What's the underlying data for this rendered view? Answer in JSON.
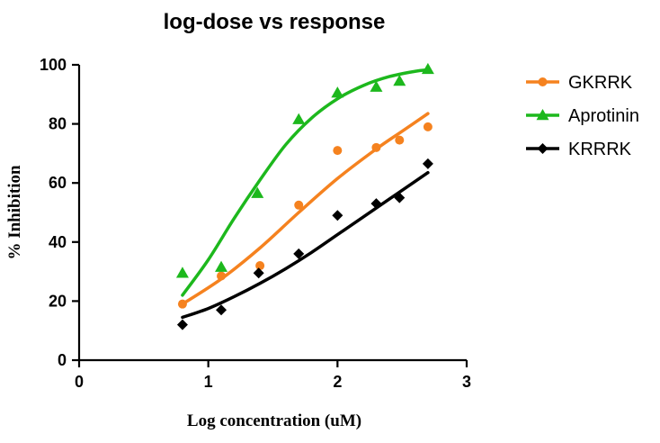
{
  "chart_data": {
    "type": "scatter",
    "title": "log-dose vs response",
    "xlabel": "Log concentration (uM)",
    "ylabel": "% Inhibition",
    "xlim": [
      0,
      3
    ],
    "ylim": [
      0,
      100
    ],
    "x_ticks": [
      "0",
      "1",
      "2",
      "3"
    ],
    "y_ticks": [
      "0",
      "20",
      "40",
      "60",
      "80",
      "100"
    ],
    "grid": false,
    "legend_position": "right",
    "series": [
      {
        "name": "GKRRK",
        "color": "#F5821F",
        "marker": "circle",
        "x": [
          0.8,
          1.1,
          1.4,
          1.7,
          2.0,
          2.3,
          2.48,
          2.7
        ],
        "y": [
          19,
          28.5,
          32,
          52.5,
          71,
          72,
          74.5,
          79
        ],
        "fit_x": [
          0.8,
          1.1,
          1.4,
          1.7,
          2.0,
          2.3,
          2.5,
          2.7
        ],
        "fit_y": [
          19,
          27.5,
          38,
          50,
          61.5,
          71.5,
          77.5,
          83.5
        ]
      },
      {
        "name": "Aprotinin",
        "color": "#1DB81D",
        "marker": "triangle",
        "x": [
          0.8,
          1.1,
          1.38,
          1.7,
          2.0,
          2.3,
          2.48,
          2.7
        ],
        "y": [
          29.5,
          31.5,
          56.5,
          81.5,
          90.5,
          92.5,
          94.5,
          98.5
        ],
        "fit_x": [
          0.8,
          1.0,
          1.2,
          1.4,
          1.6,
          1.8,
          2.0,
          2.2,
          2.4,
          2.6,
          2.7
        ],
        "fit_y": [
          22,
          34,
          48,
          61,
          73,
          82,
          88.5,
          93,
          96,
          97.8,
          98.3
        ]
      },
      {
        "name": "KRRRK",
        "color": "#000000",
        "marker": "diamond",
        "x": [
          0.8,
          1.1,
          1.39,
          1.7,
          2.0,
          2.3,
          2.48,
          2.7
        ],
        "y": [
          12,
          17,
          29.5,
          36,
          49,
          53,
          55,
          66.5
        ],
        "fit_x": [
          0.8,
          1.0,
          1.2,
          1.4,
          1.6,
          1.8,
          2.0,
          2.2,
          2.4,
          2.6,
          2.7
        ],
        "fit_y": [
          14.5,
          17.5,
          21.5,
          26,
          31,
          36.5,
          42.5,
          48.5,
          54.5,
          60.5,
          63.5
        ]
      }
    ]
  }
}
